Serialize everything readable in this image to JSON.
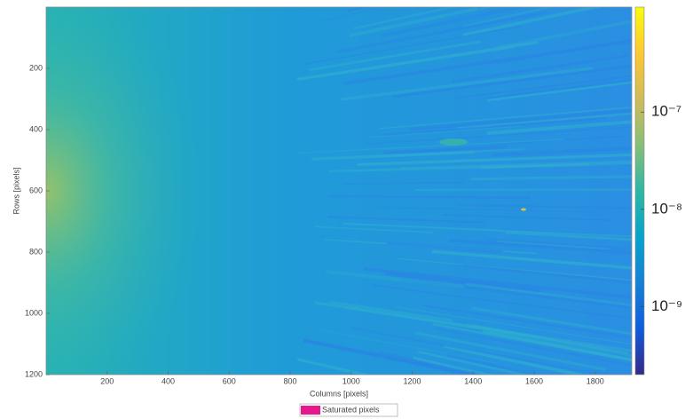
{
  "chart_data": {
    "type": "heatmap",
    "xlabel": "Columns [pixels]",
    "ylabel": "Rows [pixels]",
    "xlim": [
      0,
      1920
    ],
    "xticks": [
      200,
      400,
      600,
      800,
      1000,
      1200,
      1400,
      1600,
      1800
    ],
    "ylim": [
      0,
      1200
    ],
    "yticks": [
      200,
      400,
      600,
      800,
      1000,
      1200
    ],
    "y_reversed": true,
    "colorbar": {
      "log_scale": true,
      "lim": [
        2e-10,
        1.2e-06
      ],
      "ticks": [
        {
          "value": 1e-09,
          "label": "10⁻⁹"
        },
        {
          "value": 1e-08,
          "label": "10⁻⁸"
        },
        {
          "value": 1e-07,
          "label": "10⁻⁷"
        }
      ]
    },
    "colormap": [
      "#352a87",
      "#0f5cdd",
      "#1481d6",
      "#06a4ca",
      "#2eb7a4",
      "#87bf77",
      "#d1bb59",
      "#fec832",
      "#f9fb0e"
    ],
    "legend": {
      "name": "Saturated pixels",
      "color": "#e8168c",
      "position": "bottom"
    }
  }
}
